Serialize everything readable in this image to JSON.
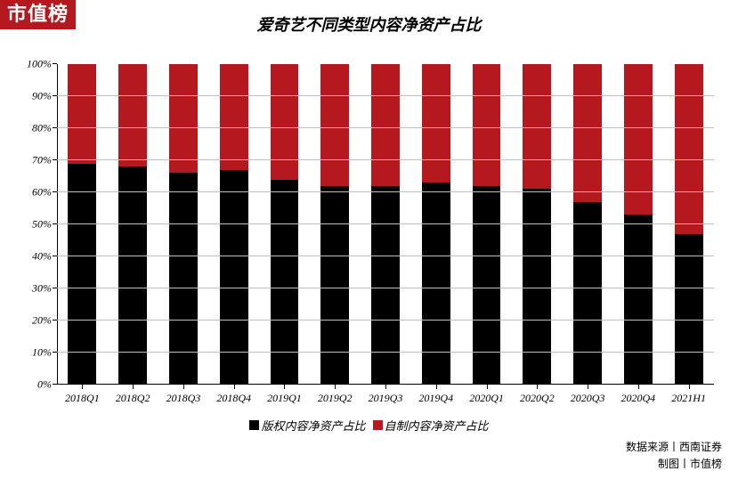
{
  "badge": {
    "text": "市值榜",
    "bg": "#b5181f",
    "fg": "#ffffff"
  },
  "title": "爱奇艺不同类型内容净资产占比",
  "chart": {
    "type": "stacked-bar-100",
    "background_color": "#ffffff",
    "grid_color": "#bfbfbf",
    "axis_color": "#000000",
    "font_family": "SimSun",
    "font_style": "italic",
    "title_fontsize": 18,
    "tick_fontsize": 12,
    "legend_fontsize": 13,
    "ylim": [
      0,
      100
    ],
    "ytick_step": 10,
    "ytick_suffix": "%",
    "bar_width_ratio": 0.56,
    "categories": [
      "2018Q1",
      "2018Q2",
      "2018Q3",
      "2018Q4",
      "2019Q1",
      "2019Q2",
      "2019Q3",
      "2019Q4",
      "2020Q1",
      "2020Q2",
      "2020Q3",
      "2020Q4",
      "2021H1"
    ],
    "series": [
      {
        "name": "版权内容净资产占比",
        "color": "#000000",
        "values": [
          69,
          68,
          66,
          67,
          64,
          62,
          62,
          63,
          62,
          61,
          57,
          53,
          47
        ]
      },
      {
        "name": "自制内容净资产占比",
        "color": "#b5181f",
        "values": [
          31,
          32,
          34,
          33,
          36,
          38,
          38,
          37,
          38,
          39,
          43,
          47,
          53
        ]
      }
    ]
  },
  "credits": {
    "line1": "数据来源丨西南证券",
    "line2": "制图丨市值榜"
  }
}
